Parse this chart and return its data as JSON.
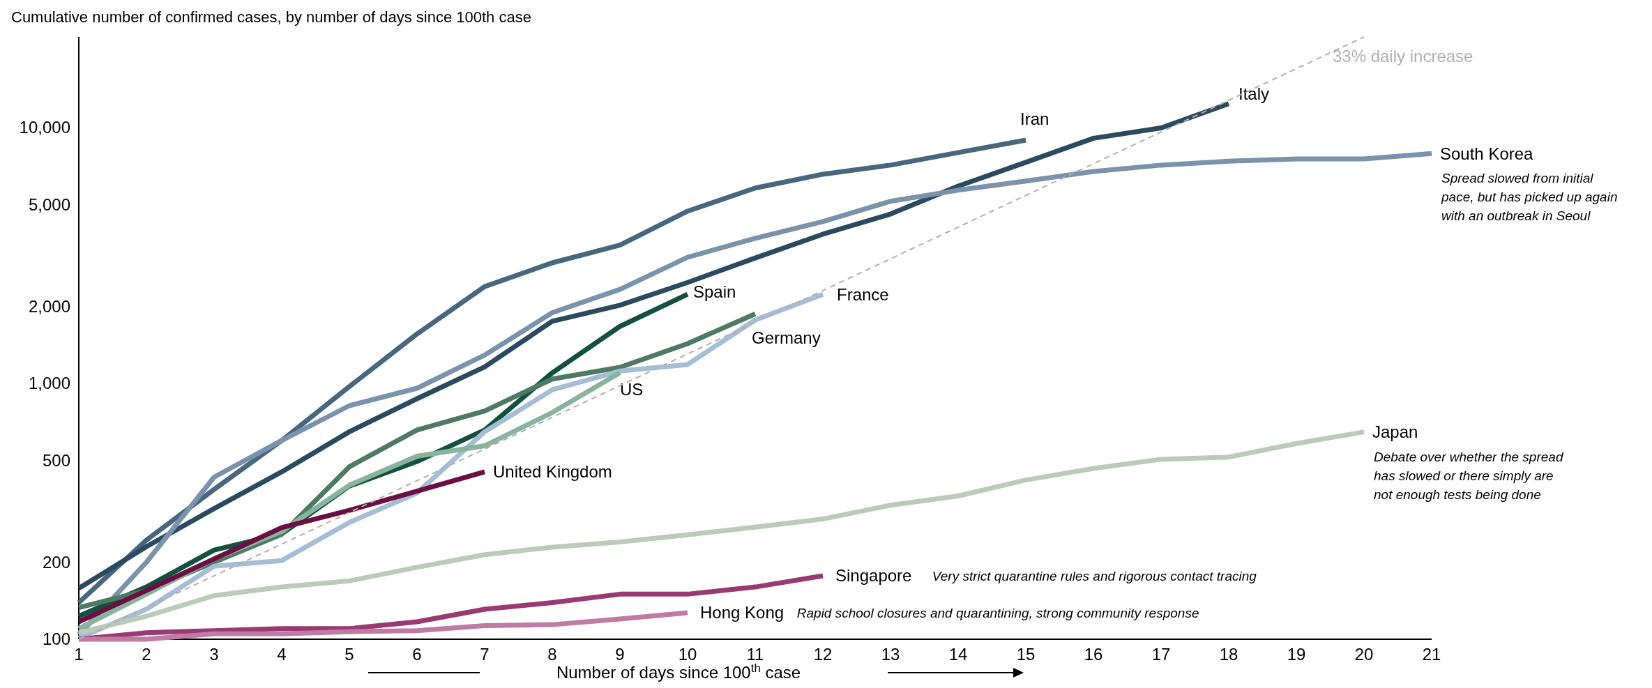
{
  "chart_data": {
    "type": "line",
    "title": "Cumulative number of confirmed cases, by number of days since 100th case",
    "xlabel": "Number of days since 100$^{th}$ case",
    "xlim": [
      1,
      21
    ],
    "xticks": [
      1,
      2,
      3,
      4,
      5,
      6,
      7,
      8,
      9,
      10,
      11,
      12,
      13,
      14,
      15,
      16,
      17,
      18,
      19,
      20,
      21
    ],
    "ylim": [
      100,
      22600
    ],
    "log": true,
    "yticks": [
      100,
      200,
      500,
      {
        "value": 1000,
        "label": "1,000"
      },
      {
        "value": 2000,
        "label": "2,000"
      },
      {
        "value": 5000,
        "label": "5,000"
      },
      {
        "value": 10000,
        "label": "10,000"
      }
    ],
    "grid": false,
    "line_style": "solid",
    "marker": "none",
    "series": [
      {
        "name": "Iran",
        "color": "#48677f",
        "x": [
          1,
          2,
          3,
          4,
          5,
          6,
          7,
          8,
          9,
          10,
          11,
          12,
          13,
          14,
          15
        ],
        "values": [
          139,
          244,
          385,
          598,
          972,
          1560,
          2390,
          2960,
          3470,
          4710,
          5800,
          6570,
          7130,
          7980,
          8930
        ]
      },
      {
        "name": "Italy",
        "color": "#2c4a5f",
        "x": [
          1,
          2,
          3,
          4,
          5,
          6,
          7,
          8,
          9,
          10,
          11,
          12,
          13,
          14,
          15,
          16,
          17,
          18
        ],
        "values": [
          158,
          230,
          324,
          451,
          647,
          871,
          1160,
          1750,
          2020,
          2480,
          3090,
          3830,
          4590,
          5900,
          7310,
          9080,
          9970,
          12400
        ]
      },
      {
        "name": "South Korea",
        "color": "#7a92ab",
        "x": [
          1,
          2,
          3,
          4,
          5,
          6,
          7,
          8,
          9,
          10,
          11,
          12,
          13,
          14,
          15,
          16,
          17,
          18,
          19,
          20,
          21
        ],
        "values": [
          104,
          200,
          430,
          598,
          818,
          957,
          1290,
          1890,
          2330,
          3110,
          3690,
          4290,
          5150,
          5690,
          6180,
          6730,
          7130,
          7390,
          7540,
          7540,
          7910
        ]
      },
      {
        "name": "Spain",
        "color": "#13503f",
        "x": [
          1,
          2,
          3,
          4,
          5,
          6,
          7,
          8,
          9,
          10
        ],
        "values": [
          123,
          160,
          223,
          258,
          397,
          495,
          657,
          1100,
          1670,
          2230
        ]
      },
      {
        "name": "Germany",
        "color": "#4e7963",
        "x": [
          1,
          2,
          3,
          4,
          5,
          6,
          7,
          8,
          9,
          10,
          11
        ],
        "values": [
          133,
          155,
          200,
          257,
          472,
          657,
          780,
          1040,
          1155,
          1430,
          1870
        ]
      },
      {
        "name": "France",
        "color": "#a6bdd5",
        "x": [
          1,
          2,
          3,
          4,
          5,
          6,
          7,
          8,
          9,
          10,
          11,
          12
        ],
        "values": [
          101,
          131,
          193,
          203,
          286,
          373,
          647,
          944,
          1117,
          1185,
          1770,
          2230
        ]
      },
      {
        "name": "US",
        "color": "#88b39c",
        "x": [
          1,
          2,
          3,
          4,
          5,
          6,
          7,
          8,
          9
        ],
        "values": [
          110,
          150,
          206,
          264,
          400,
          519,
          570,
          769,
          1100
        ]
      },
      {
        "name": "United Kingdom",
        "color": "#6b0e42",
        "x": [
          1,
          2,
          3,
          4,
          5,
          6,
          7
        ],
        "values": [
          117,
          155,
          206,
          273,
          319,
          379,
          451
        ]
      },
      {
        "name": "Japan",
        "color": "#bccbb9",
        "x": [
          1,
          2,
          3,
          4,
          5,
          6,
          7,
          8,
          9,
          10,
          11,
          12,
          13,
          14,
          15,
          16,
          17,
          18,
          19,
          20
        ],
        "values": [
          106,
          123,
          148,
          160,
          169,
          191,
          214,
          229,
          240,
          256,
          274,
          295,
          334,
          363,
          419,
          465,
          505,
          515,
          582,
          646
        ]
      },
      {
        "name": "Singapore",
        "color": "#9a3a73",
        "x": [
          1,
          2,
          3,
          4,
          5,
          6,
          7,
          8,
          9,
          10,
          11,
          12
        ],
        "values": [
          100,
          106,
          108,
          110,
          110,
          117,
          131,
          139,
          150,
          150,
          160,
          177
        ]
      },
      {
        "name": "Hong Kong",
        "color": "#c07ba4",
        "x": [
          1,
          2,
          3,
          4,
          5,
          6,
          7,
          8,
          9,
          10
        ],
        "values": [
          100,
          100,
          105,
          105,
          107,
          108,
          113,
          114,
          120,
          127
        ]
      },
      {
        "name": "33% daily increase",
        "color": "#b0b0b0",
        "line_style": "dashed",
        "x": [
          1,
          20
        ],
        "values": [
          100,
          22600
        ]
      }
    ],
    "annotations": [
      {
        "text": "Spread slowed from initial pace, but has picked up again with an outbreak in Seoul",
        "x": 21,
        "y": 7910
      },
      {
        "text": "Debate over whether the spread has slowed or there simply are not enough tests being done",
        "x": 20,
        "y": 646
      },
      "Very strict quarantine rules and rigorous contact tracing",
      "Rapid school closures and quarantining, strong community response"
    ]
  }
}
